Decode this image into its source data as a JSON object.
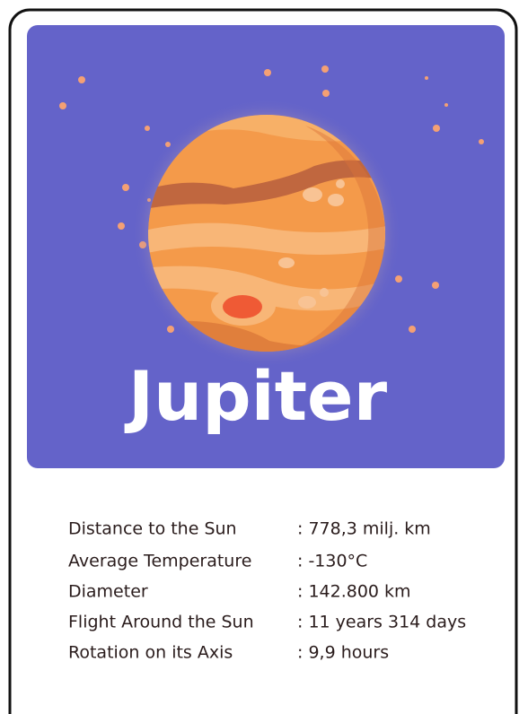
{
  "card": {
    "title": "Jupiter",
    "facts": [
      {
        "label": "Distance to the Sun",
        "value": ": 778,3 milj. km"
      },
      {
        "label": "Average Temperature",
        "value": ": -130°C"
      },
      {
        "label": "Diameter",
        "value": ": 142.800 km"
      },
      {
        "label": "Flight Around the Sun",
        "value": ": 11 years 314 days"
      },
      {
        "label": "Rotation on its Axis",
        "value": ": 9,9 hours"
      }
    ]
  }
}
